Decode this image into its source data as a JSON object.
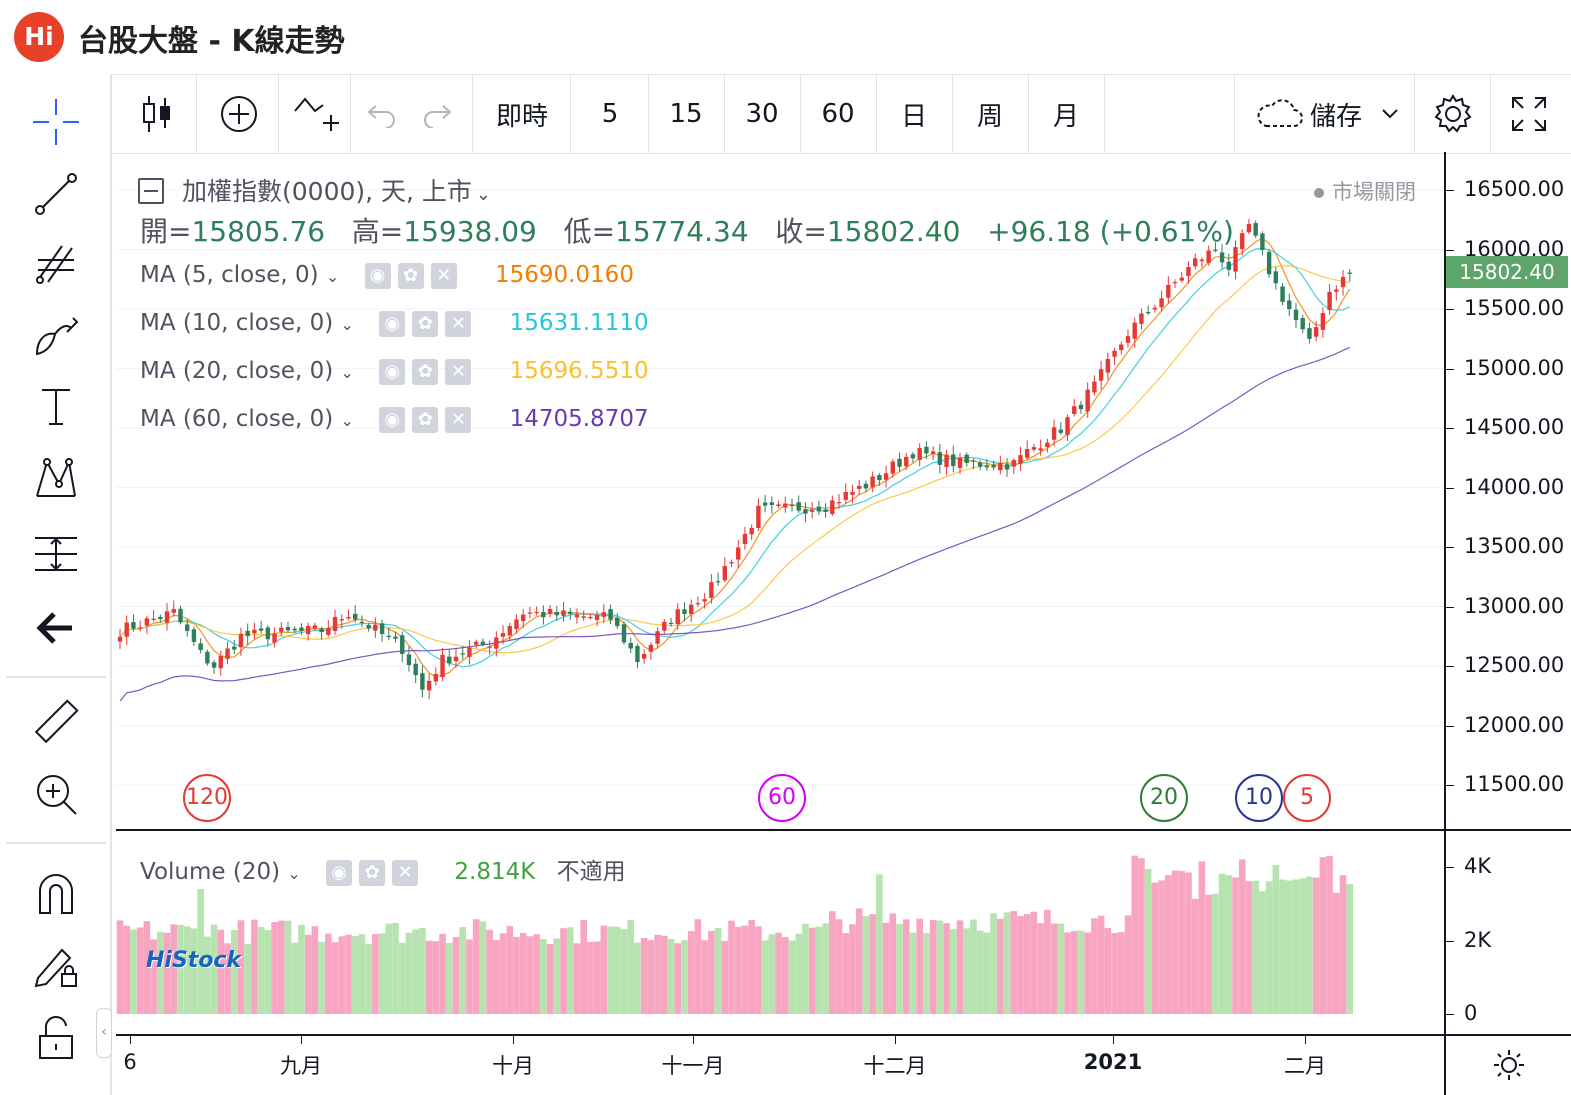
{
  "app": {
    "logo": "Hi",
    "title": "台股大盤 - K線走勢"
  },
  "toolbar": {
    "intervals": [
      "即時",
      "5",
      "15",
      "30",
      "60",
      "日",
      "周",
      "月"
    ],
    "save_label": "儲存"
  },
  "legend": {
    "symbol": "加權指數(0000), 天, 上市",
    "market_status": "市場關閉",
    "ohlc": {
      "open_label": "開=",
      "open": "15805.76",
      "high_label": "高=",
      "high": "15938.09",
      "low_label": "低=",
      "low": "15774.34",
      "close_label": "收=",
      "close": "15802.40",
      "change": "+96.18 (+0.61%)"
    },
    "ma": [
      {
        "label": "MA (5, close, 0)",
        "value": "15690.0160",
        "color": "#f57c00"
      },
      {
        "label": "MA (10, close, 0)",
        "value": "15631.1110",
        "color": "#26c6da"
      },
      {
        "label": "MA (20, close, 0)",
        "value": "15696.5510",
        "color": "#fbc02d"
      },
      {
        "label": "MA (60, close, 0)",
        "value": "14705.8707",
        "color": "#673ab7"
      }
    ],
    "volume": {
      "label": "Volume (20)",
      "value": "2.814K",
      "na": "不適用"
    }
  },
  "price_axis": {
    "labels": [
      "16500.00",
      "16000.00",
      "15500.00",
      "15000.00",
      "14500.00",
      "14000.00",
      "13500.00",
      "13000.00",
      "12500.00",
      "12000.00",
      "11500.00"
    ],
    "current": "15802.40"
  },
  "volume_axis": {
    "labels": [
      "4K",
      "2K",
      "0"
    ]
  },
  "time_axis": {
    "labels": [
      "6",
      "九月",
      "十月",
      "十一月",
      "十二月",
      "2021",
      "二月"
    ]
  },
  "period_markers": [
    {
      "label": "120",
      "color": "#e53935"
    },
    {
      "label": "60",
      "color": "#d500f9"
    },
    {
      "label": "20",
      "color": "#2e7d32"
    },
    {
      "label": "10",
      "color": "#283593"
    },
    {
      "label": "5",
      "color": "#e53935"
    }
  ],
  "watermark": "HiStock",
  "colors": {
    "up": "#e53935",
    "down": "#2e7d5b",
    "vol_up": "#f8a5c2",
    "vol_down": "#b6e3b0",
    "accent": "#2962ff"
  },
  "chart_data": {
    "type": "candlestick",
    "symbol": "加權指數(0000)",
    "ylim": [
      11200,
      16800
    ],
    "anchors": [
      [
        0,
        12800
      ],
      [
        8,
        12950
      ],
      [
        12,
        12600
      ],
      [
        14,
        12500
      ],
      [
        18,
        12750
      ],
      [
        30,
        12800
      ],
      [
        34,
        12950
      ],
      [
        42,
        12650
      ],
      [
        45,
        12300
      ],
      [
        48,
        12550
      ],
      [
        55,
        12700
      ],
      [
        60,
        12950
      ],
      [
        73,
        12900
      ],
      [
        77,
        12550
      ],
      [
        82,
        12900
      ],
      [
        88,
        13150
      ],
      [
        92,
        13500
      ],
      [
        95,
        13800
      ],
      [
        105,
        13850
      ],
      [
        112,
        14050
      ],
      [
        118,
        14300
      ],
      [
        125,
        14200
      ],
      [
        133,
        14200
      ],
      [
        135,
        14300
      ],
      [
        140,
        14500
      ],
      [
        145,
        14850
      ],
      [
        150,
        15300
      ],
      [
        155,
        15600
      ],
      [
        160,
        15900
      ],
      [
        163,
        16000
      ],
      [
        165,
        15850
      ],
      [
        168,
        16200
      ],
      [
        172,
        15700
      ],
      [
        177,
        15200
      ],
      [
        180,
        15650
      ],
      [
        183,
        15802.4
      ]
    ],
    "ma_series": [
      "MA 5",
      "MA 10",
      "MA 20",
      "MA 60"
    ],
    "volume_ylim": [
      0,
      4500
    ]
  }
}
